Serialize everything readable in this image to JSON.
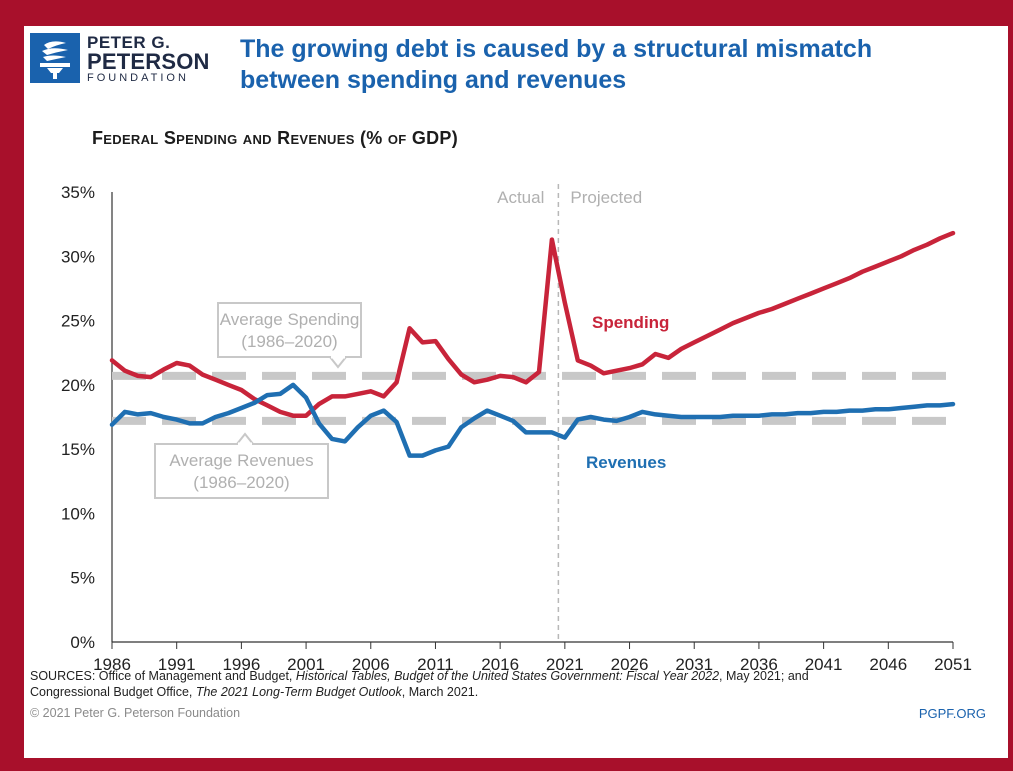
{
  "logo": {
    "line1": "PETER G.",
    "line2": "PETERSON",
    "line3": "FOUNDATION",
    "icon": "torch-icon"
  },
  "headline": {
    "line1": "The growing debt is caused by a structural mismatch",
    "line2": "between spending and revenues"
  },
  "colors": {
    "frame": "#a8102b",
    "spending": "#c8243a",
    "revenues": "#1f6fb2",
    "average_lines": "#c8c8c8",
    "brand_blue": "#1a62ad"
  },
  "chart_data": {
    "type": "line",
    "title": "Federal Spending and Revenues (% of GDP)",
    "xlabel": "",
    "ylabel": "",
    "xlim": [
      1986,
      2051
    ],
    "ylim": [
      0,
      35
    ],
    "x_ticks": [
      "1986",
      "1991",
      "1996",
      "2001",
      "2006",
      "2011",
      "2016",
      "2021",
      "2026",
      "2031",
      "2036",
      "2041",
      "2046",
      "2051"
    ],
    "y_ticks": [
      "0%",
      "5%",
      "10%",
      "15%",
      "20%",
      "25%",
      "30%",
      "35%"
    ],
    "y_tick_values": [
      0,
      5,
      10,
      15,
      20,
      25,
      30,
      35
    ],
    "grid": false,
    "actual_label": "Actual",
    "projected_label": "Projected",
    "divider_x": 2020.5,
    "series": [
      {
        "name": "Spending",
        "color": "#c8243a",
        "x": [
          1986,
          1987,
          1988,
          1989,
          1990,
          1991,
          1992,
          1993,
          1994,
          1995,
          1996,
          1997,
          1998,
          1999,
          2000,
          2001,
          2002,
          2003,
          2004,
          2005,
          2006,
          2007,
          2008,
          2009,
          2010,
          2011,
          2012,
          2013,
          2014,
          2015,
          2016,
          2017,
          2018,
          2019,
          2020,
          2021,
          2022,
          2023,
          2024,
          2025,
          2026,
          2027,
          2028,
          2029,
          2030,
          2031,
          2032,
          2033,
          2034,
          2035,
          2036,
          2037,
          2038,
          2039,
          2040,
          2041,
          2042,
          2043,
          2044,
          2045,
          2046,
          2047,
          2048,
          2049,
          2050,
          2051
        ],
        "values": [
          21.9,
          21.1,
          20.7,
          20.6,
          21.2,
          21.7,
          21.5,
          20.8,
          20.4,
          20.0,
          19.6,
          18.9,
          18.4,
          17.9,
          17.6,
          17.6,
          18.5,
          19.1,
          19.1,
          19.3,
          19.5,
          19.1,
          20.2,
          24.4,
          23.3,
          23.4,
          22.0,
          20.8,
          20.2,
          20.4,
          20.7,
          20.6,
          20.2,
          21.0,
          31.3,
          26.4,
          21.9,
          21.5,
          20.9,
          21.1,
          21.3,
          21.6,
          22.4,
          22.1,
          22.8,
          23.3,
          23.8,
          24.3,
          24.8,
          25.2,
          25.6,
          25.9,
          26.3,
          26.7,
          27.1,
          27.5,
          27.9,
          28.3,
          28.8,
          29.2,
          29.6,
          30.0,
          30.5,
          30.9,
          31.4,
          31.8
        ]
      },
      {
        "name": "Revenues",
        "color": "#1f6fb2",
        "x": [
          1986,
          1987,
          1988,
          1989,
          1990,
          1991,
          1992,
          1993,
          1994,
          1995,
          1996,
          1997,
          1998,
          1999,
          2000,
          2001,
          2002,
          2003,
          2004,
          2005,
          2006,
          2007,
          2008,
          2009,
          2010,
          2011,
          2012,
          2013,
          2014,
          2015,
          2016,
          2017,
          2018,
          2019,
          2020,
          2021,
          2022,
          2023,
          2024,
          2025,
          2026,
          2027,
          2028,
          2029,
          2030,
          2031,
          2032,
          2033,
          2034,
          2035,
          2036,
          2037,
          2038,
          2039,
          2040,
          2041,
          2042,
          2043,
          2044,
          2045,
          2046,
          2047,
          2048,
          2049,
          2050,
          2051
        ],
        "values": [
          16.9,
          17.9,
          17.7,
          17.8,
          17.5,
          17.3,
          17.0,
          17.0,
          17.5,
          17.8,
          18.2,
          18.6,
          19.2,
          19.3,
          20.0,
          19.0,
          17.0,
          15.8,
          15.6,
          16.7,
          17.6,
          18.0,
          17.1,
          14.5,
          14.5,
          14.9,
          15.2,
          16.7,
          17.4,
          18.0,
          17.6,
          17.2,
          16.3,
          16.3,
          16.3,
          15.9,
          17.3,
          17.5,
          17.3,
          17.2,
          17.5,
          17.9,
          17.7,
          17.6,
          17.5,
          17.5,
          17.5,
          17.5,
          17.6,
          17.6,
          17.6,
          17.7,
          17.7,
          17.8,
          17.8,
          17.9,
          17.9,
          18.0,
          18.0,
          18.1,
          18.1,
          18.2,
          18.3,
          18.4,
          18.4,
          18.5
        ]
      }
    ],
    "averages": [
      {
        "value": 20.7,
        "label_line1": "Average Spending",
        "label_line2": "(1986–2020)"
      },
      {
        "value": 17.2,
        "label_line1": "Average Revenues",
        "label_line2": "(1986–2020)"
      }
    ],
    "series_labels": [
      "Spending",
      "Revenues"
    ]
  },
  "footer": {
    "sources_prefix": "SOURCES: Office of Management and Budget, ",
    "sources_italic1": "Historical Tables, Budget of the United States Government: Fiscal Year 2022",
    "sources_mid": ", May 2021; and",
    "sources_line2_prefix": "Congressional Budget Office, ",
    "sources_italic2": "The 2021 Long-Term Budget Outlook",
    "sources_suffix": ", March 2021.",
    "copyright": "© 2021 Peter G. Peterson Foundation",
    "url": "PGPF.ORG"
  }
}
